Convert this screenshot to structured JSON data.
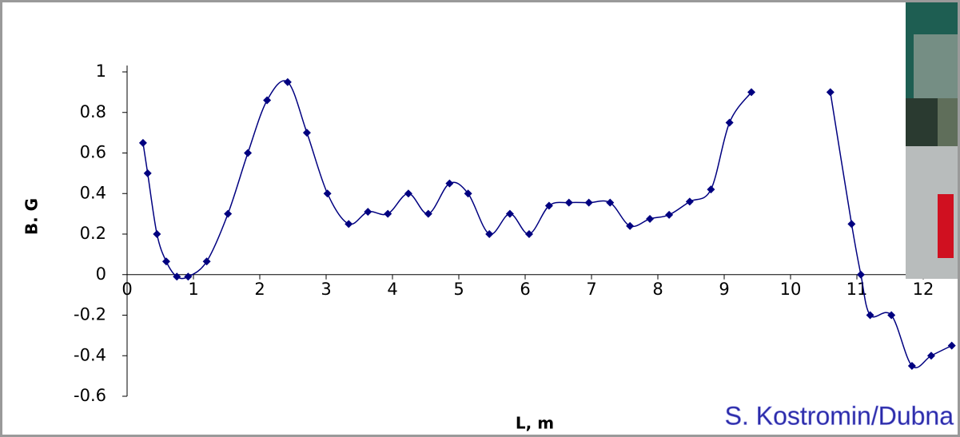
{
  "chart_data": {
    "type": "line",
    "x_label": "L, m",
    "y_label": "B. G",
    "annotation": "S. Kostromin/Dubna",
    "xlim": [
      0,
      12.6
    ],
    "ylim": [
      -0.6,
      1
    ],
    "xticks": [
      0,
      1,
      2,
      3,
      4,
      5,
      6,
      7,
      8,
      9,
      10,
      11,
      12
    ],
    "yticks": [
      -0.6,
      -0.4,
      -0.2,
      0,
      0.2,
      0.4,
      0.6,
      0.8,
      1
    ],
    "series": [
      {
        "name": "B",
        "color": "#000080",
        "x": [
          0.24,
          0.31,
          0.45,
          0.59,
          0.75,
          0.92,
          1.2,
          1.52,
          1.82,
          2.11,
          2.42,
          2.71,
          3.02,
          3.34,
          3.63,
          3.93,
          4.24,
          4.54,
          4.86,
          5.14,
          5.46,
          5.77,
          6.06,
          6.36,
          6.66,
          6.96,
          7.28,
          7.58,
          7.88,
          8.17,
          8.48,
          8.8,
          9.08,
          9.41,
          null,
          10.6,
          10.92,
          11.06,
          11.2,
          11.52,
          11.83,
          12.12,
          12.43
        ],
        "values": [
          0.65,
          0.5,
          0.2,
          0.065,
          -0.01,
          -0.01,
          0.065,
          0.3,
          0.6,
          0.86,
          0.95,
          0.7,
          0.4,
          0.25,
          0.31,
          0.3,
          0.4,
          0.3,
          0.45,
          0.4,
          0.2,
          0.3,
          0.2,
          0.34,
          0.355,
          0.355,
          0.355,
          0.24,
          0.275,
          0.295,
          0.36,
          0.42,
          0.75,
          0.9,
          null,
          0.9,
          0.25,
          0,
          -0.2,
          -0.2,
          -0.45,
          -0.4,
          -0.35
        ]
      }
    ]
  }
}
